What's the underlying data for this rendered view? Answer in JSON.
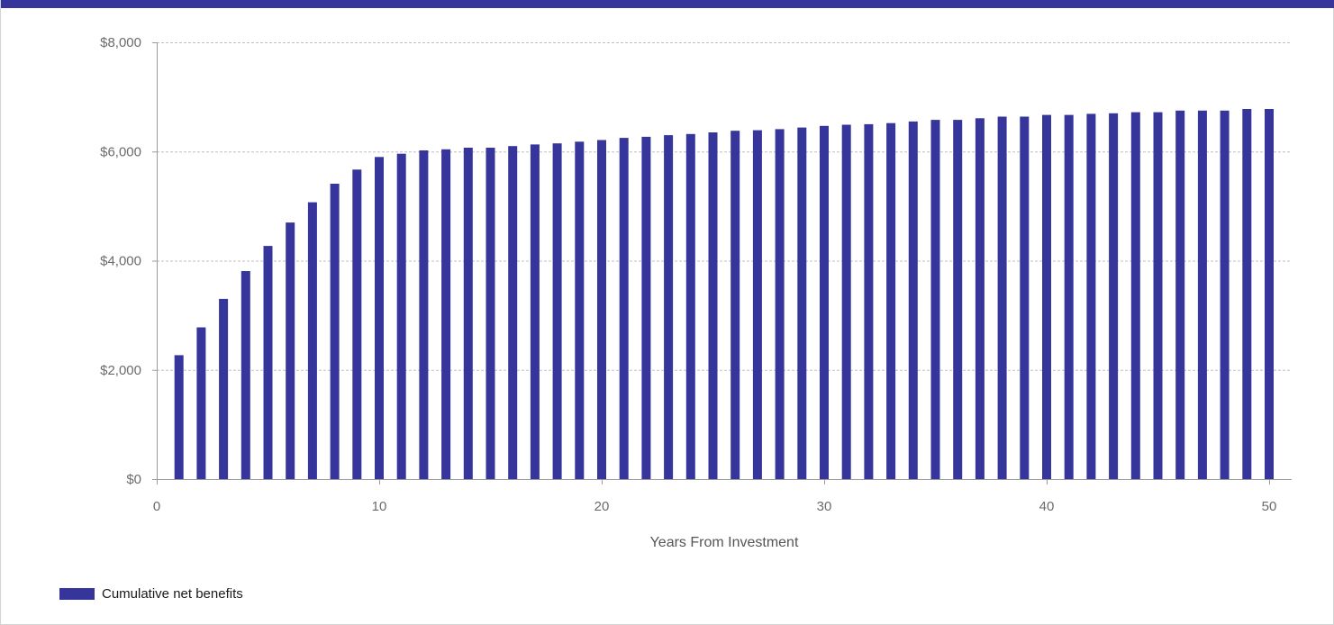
{
  "colors": {
    "header_bar": "#35359b",
    "bar": "#35359b",
    "grid": "#bfbfbf",
    "axis": "#9a9a9a"
  },
  "chart_data": {
    "type": "bar",
    "xlabel": "Years From Investment",
    "ylabel": "",
    "x_axis": {
      "range": [
        0,
        51
      ],
      "ticks": [
        0,
        10,
        20,
        30,
        40,
        50
      ],
      "tick_labels": [
        "0",
        "10",
        "20",
        "30",
        "40",
        "50"
      ]
    },
    "y_axis": {
      "range": [
        0,
        8000
      ],
      "ticks": [
        0,
        2000,
        4000,
        6000,
        8000
      ],
      "tick_labels": [
        "$0",
        "$2,000",
        "$4,000",
        "$6,000",
        "$8,000"
      ]
    },
    "grid": true,
    "legend_position": "bottom-left",
    "series": [
      {
        "name": "Cumulative net benefits",
        "x": [
          1,
          2,
          3,
          4,
          5,
          6,
          7,
          8,
          9,
          10,
          11,
          12,
          13,
          14,
          15,
          16,
          17,
          18,
          19,
          20,
          21,
          22,
          23,
          24,
          25,
          26,
          27,
          28,
          29,
          30,
          31,
          32,
          33,
          34,
          35,
          36,
          37,
          38,
          39,
          40,
          41,
          42,
          43,
          44,
          45,
          46,
          47,
          48,
          49,
          50
        ],
        "values": [
          2270,
          2780,
          3300,
          3810,
          4270,
          4700,
          5070,
          5410,
          5670,
          5900,
          5960,
          6020,
          6040,
          6070,
          6070,
          6100,
          6130,
          6150,
          6180,
          6210,
          6250,
          6270,
          6300,
          6320,
          6350,
          6380,
          6390,
          6410,
          6440,
          6470,
          6490,
          6500,
          6520,
          6550,
          6580,
          6580,
          6610,
          6640,
          6640,
          6670,
          6670,
          6690,
          6700,
          6720,
          6720,
          6750,
          6750,
          6750,
          6780,
          6780
        ]
      }
    ]
  }
}
